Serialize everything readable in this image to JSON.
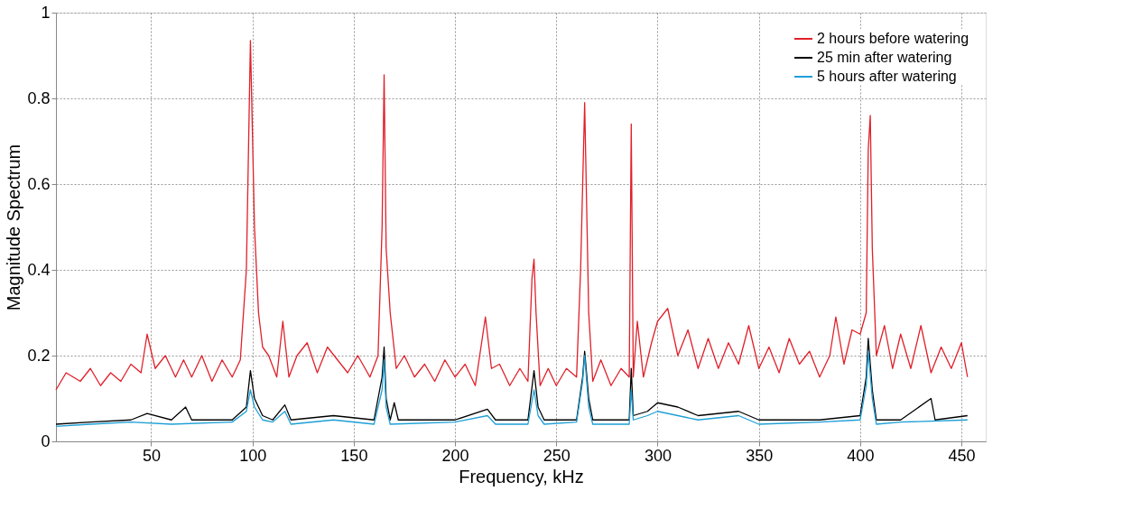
{
  "chart_data": {
    "type": "line",
    "xlabel": "Frequency, kHz",
    "ylabel": "Magnitude Spectrum",
    "xlim": [
      3,
      462
    ],
    "ylim": [
      0,
      1
    ],
    "xticks": [
      50,
      100,
      150,
      200,
      250,
      300,
      350,
      400,
      450
    ],
    "yticks": [
      0,
      0.2,
      0.4,
      0.6,
      0.8,
      1
    ],
    "grid": true,
    "legend": "top right",
    "line_style": "solid",
    "marker": "none",
    "series": [
      {
        "name": "2 hours before watering",
        "color": "#e0202a",
        "x": [
          3,
          8,
          15,
          20,
          25,
          30,
          35,
          40,
          45,
          48,
          52,
          57,
          62,
          66,
          70,
          75,
          80,
          85,
          90,
          94,
          97,
          99,
          101,
          103,
          105,
          108,
          112,
          115,
          118,
          122,
          127,
          132,
          137,
          142,
          147,
          152,
          158,
          162,
          164,
          165,
          166,
          168,
          171,
          175,
          180,
          185,
          190,
          195,
          200,
          205,
          210,
          215,
          218,
          222,
          227,
          232,
          236,
          238,
          239,
          240,
          242,
          246,
          250,
          255,
          260,
          262,
          264,
          266,
          268,
          272,
          277,
          282,
          286,
          287,
          288,
          290,
          293,
          297,
          300,
          305,
          310,
          315,
          320,
          325,
          330,
          335,
          340,
          345,
          350,
          355,
          360,
          365,
          370,
          375,
          380,
          385,
          388,
          392,
          396,
          400,
          403,
          404,
          405,
          406,
          408,
          412,
          416,
          420,
          425,
          430,
          435,
          440,
          445,
          450,
          453
        ],
        "values": [
          0.12,
          0.16,
          0.14,
          0.17,
          0.13,
          0.16,
          0.14,
          0.18,
          0.16,
          0.25,
          0.17,
          0.2,
          0.15,
          0.19,
          0.15,
          0.2,
          0.14,
          0.19,
          0.15,
          0.19,
          0.4,
          0.935,
          0.5,
          0.3,
          0.22,
          0.2,
          0.15,
          0.28,
          0.15,
          0.2,
          0.23,
          0.16,
          0.22,
          0.19,
          0.16,
          0.2,
          0.15,
          0.2,
          0.5,
          0.855,
          0.45,
          0.3,
          0.17,
          0.2,
          0.15,
          0.18,
          0.14,
          0.19,
          0.15,
          0.18,
          0.13,
          0.29,
          0.17,
          0.18,
          0.13,
          0.17,
          0.14,
          0.38,
          0.425,
          0.3,
          0.13,
          0.17,
          0.13,
          0.17,
          0.15,
          0.4,
          0.79,
          0.3,
          0.14,
          0.19,
          0.13,
          0.17,
          0.15,
          0.74,
          0.15,
          0.28,
          0.15,
          0.23,
          0.28,
          0.31,
          0.2,
          0.26,
          0.17,
          0.24,
          0.17,
          0.23,
          0.18,
          0.27,
          0.17,
          0.22,
          0.16,
          0.24,
          0.18,
          0.21,
          0.15,
          0.2,
          0.29,
          0.18,
          0.26,
          0.25,
          0.3,
          0.68,
          0.76,
          0.45,
          0.2,
          0.27,
          0.17,
          0.25,
          0.17,
          0.27,
          0.16,
          0.22,
          0.17,
          0.23,
          0.15
        ]
      },
      {
        "name": "25 min after watering",
        "color": "#000000",
        "x": [
          3,
          20,
          40,
          48,
          60,
          67,
          70,
          90,
          97,
          99,
          101,
          105,
          110,
          116,
          119,
          140,
          160,
          164,
          165,
          166,
          168,
          170,
          172,
          200,
          216,
          220,
          236,
          239,
          241,
          244,
          260,
          263,
          264,
          266,
          268,
          286,
          287,
          288,
          295,
          300,
          310,
          320,
          340,
          350,
          380,
          400,
          403,
          404,
          406,
          408,
          420,
          435,
          437,
          453
        ],
        "values": [
          0.04,
          0.045,
          0.05,
          0.065,
          0.05,
          0.08,
          0.05,
          0.05,
          0.08,
          0.165,
          0.1,
          0.06,
          0.05,
          0.085,
          0.05,
          0.06,
          0.05,
          0.15,
          0.22,
          0.1,
          0.05,
          0.09,
          0.05,
          0.05,
          0.075,
          0.05,
          0.05,
          0.165,
          0.08,
          0.05,
          0.05,
          0.15,
          0.21,
          0.1,
          0.05,
          0.05,
          0.17,
          0.06,
          0.07,
          0.09,
          0.08,
          0.06,
          0.07,
          0.05,
          0.05,
          0.06,
          0.15,
          0.24,
          0.12,
          0.05,
          0.05,
          0.1,
          0.05,
          0.06
        ]
      },
      {
        "name": "5 hours after watering",
        "color": "#1e9fd6",
        "x": [
          3,
          20,
          40,
          60,
          90,
          97,
          99,
          101,
          105,
          110,
          116,
          119,
          140,
          160,
          164,
          165,
          166,
          168,
          200,
          216,
          220,
          236,
          239,
          241,
          244,
          260,
          263,
          264,
          266,
          268,
          286,
          287,
          288,
          295,
          300,
          310,
          320,
          340,
          350,
          380,
          400,
          403,
          404,
          406,
          408,
          420,
          453
        ],
        "values": [
          0.035,
          0.04,
          0.045,
          0.04,
          0.045,
          0.07,
          0.12,
          0.08,
          0.05,
          0.045,
          0.07,
          0.04,
          0.05,
          0.04,
          0.12,
          0.19,
          0.08,
          0.04,
          0.045,
          0.06,
          0.04,
          0.04,
          0.12,
          0.06,
          0.04,
          0.045,
          0.14,
          0.2,
          0.08,
          0.04,
          0.04,
          0.12,
          0.05,
          0.06,
          0.07,
          0.06,
          0.05,
          0.06,
          0.04,
          0.045,
          0.05,
          0.13,
          0.21,
          0.1,
          0.04,
          0.045,
          0.05
        ]
      }
    ]
  }
}
